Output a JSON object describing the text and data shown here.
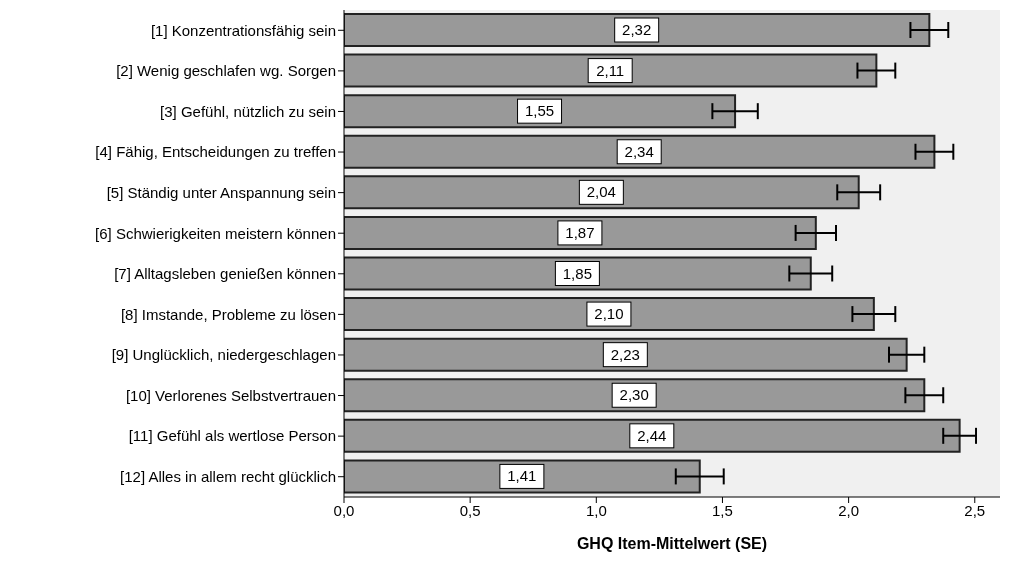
{
  "chart_data": {
    "type": "bar",
    "orientation": "horizontal",
    "xlabel": "GHQ Item-Mittelwert (SE)",
    "categories": [
      "[1] Konzentrationsfähig sein",
      "[2] Wenig geschlafen wg. Sorgen",
      "[3] Gefühl, nützlich zu sein",
      "[4] Fähig, Entscheidungen zu treffen",
      "[5] Ständig unter Anspannung sein",
      "[6] Schwierigkeiten meistern können",
      "[7] Alltagsleben genießen können",
      "[8] Imstande, Probleme zu lösen",
      "[9] Unglücklich, niedergeschlagen",
      "[10] Verlorenes Selbstvertrauen",
      "[11] Gefühl als wertlose Person",
      "[12] Alles in allem recht glücklich"
    ],
    "values": [
      2.32,
      2.11,
      1.55,
      2.34,
      2.04,
      1.87,
      1.85,
      2.1,
      2.23,
      2.3,
      2.44,
      1.41
    ],
    "errors": [
      0.075,
      0.075,
      0.09,
      0.075,
      0.085,
      0.08,
      0.085,
      0.085,
      0.07,
      0.075,
      0.065,
      0.095
    ],
    "value_labels": [
      "2,32",
      "2,11",
      "1,55",
      "2,34",
      "2,04",
      "1,87",
      "1,85",
      "2,10",
      "2,23",
      "2,30",
      "2,44",
      "1,41"
    ],
    "color": "#999999",
    "xlim": [
      0,
      2.6
    ],
    "xticks": [
      {
        "value": 0,
        "label": "0,0"
      },
      {
        "value": 0.5,
        "label": "0,5"
      },
      {
        "value": 1,
        "label": "1,0"
      },
      {
        "value": 1.5,
        "label": "1,5"
      },
      {
        "value": 2,
        "label": "2,0"
      },
      {
        "value": 2.5,
        "label": "2,5"
      }
    ],
    "grid": false
  }
}
